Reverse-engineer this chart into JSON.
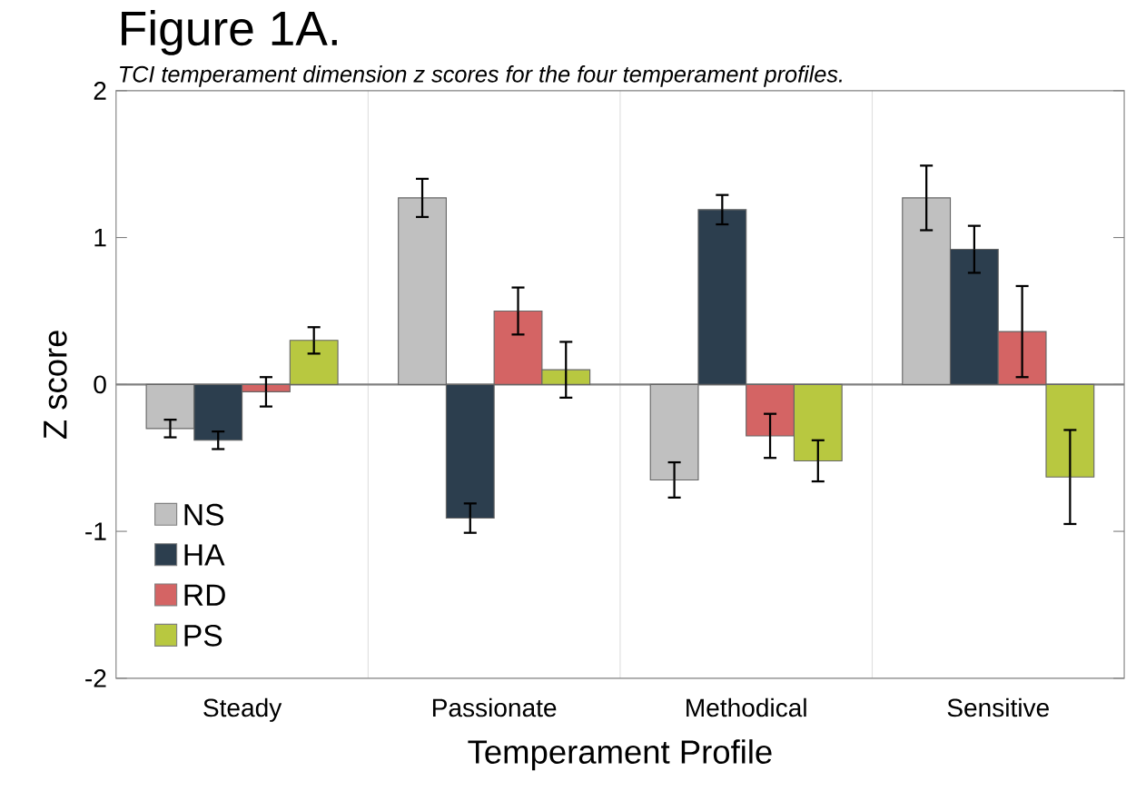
{
  "chart_data": {
    "type": "bar",
    "title": "Figure 1A.",
    "subtitle": "TCI temperament dimension z scores for the four temperament profiles.",
    "xlabel": "Temperament Profile",
    "ylabel": "Z score",
    "categories": [
      "Steady",
      "Passionate",
      "Methodical",
      "Sensitive"
    ],
    "series": [
      {
        "name": "NS",
        "color": "#c0c0c0",
        "values": [
          -0.3,
          1.27,
          -0.65,
          1.27
        ],
        "errors": [
          0.06,
          0.13,
          0.12,
          0.22
        ]
      },
      {
        "name": "HA",
        "color": "#2c3e4e",
        "values": [
          -0.38,
          -0.91,
          1.19,
          0.92
        ],
        "errors": [
          0.06,
          0.1,
          0.1,
          0.16
        ]
      },
      {
        "name": "RD",
        "color": "#d46464",
        "values": [
          -0.05,
          0.5,
          -0.35,
          0.36
        ],
        "errors": [
          0.1,
          0.16,
          0.15,
          0.31
        ]
      },
      {
        "name": "PS",
        "color": "#b8c840",
        "values": [
          0.3,
          0.1,
          -0.52,
          -0.63
        ],
        "errors": [
          0.09,
          0.19,
          0.14,
          0.32
        ]
      }
    ],
    "ylim": [
      -2,
      2
    ],
    "yticks": [
      -2,
      -1,
      0,
      1,
      2
    ],
    "grid": "x",
    "legend": "bottom left"
  }
}
